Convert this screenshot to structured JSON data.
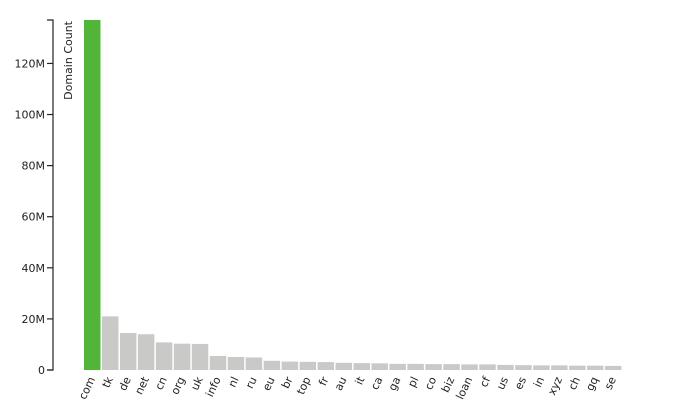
{
  "chart_data": {
    "type": "bar",
    "ylabel": "Domain Count",
    "xlabel": "",
    "ylim": [
      0,
      137000000
    ],
    "yticks": [
      {
        "value": 0,
        "label": "0"
      },
      {
        "value": 20000000,
        "label": "20M"
      },
      {
        "value": 40000000,
        "label": "40M"
      },
      {
        "value": 60000000,
        "label": "60M"
      },
      {
        "value": 80000000,
        "label": "80M"
      },
      {
        "value": 100000000,
        "label": "100M"
      },
      {
        "value": 120000000,
        "label": "120M"
      }
    ],
    "categories": [
      "com",
      "tk",
      "de",
      "net",
      "cn",
      "org",
      "uk",
      "info",
      "nl",
      "ru",
      "eu",
      "br",
      "top",
      "fr",
      "au",
      "it",
      "ca",
      "ga",
      "pl",
      "co",
      "biz",
      "loan",
      "cf",
      "us",
      "es",
      "in",
      "xyz",
      "ch",
      "gq",
      "se"
    ],
    "values": [
      137000000,
      21000000,
      14500000,
      14000000,
      10800000,
      10300000,
      10200000,
      5500000,
      5100000,
      4900000,
      3600000,
      3300000,
      3200000,
      3100000,
      2800000,
      2700000,
      2600000,
      2400000,
      2400000,
      2300000,
      2300000,
      2200000,
      2200000,
      2000000,
      1900000,
      1800000,
      1800000,
      1700000,
      1700000,
      1600000
    ],
    "highlight_index": 0,
    "colors": {
      "highlight": "#52b53a",
      "bar": "#c9c9c7",
      "axis": "#222222"
    },
    "grid": false,
    "legend": "none"
  }
}
